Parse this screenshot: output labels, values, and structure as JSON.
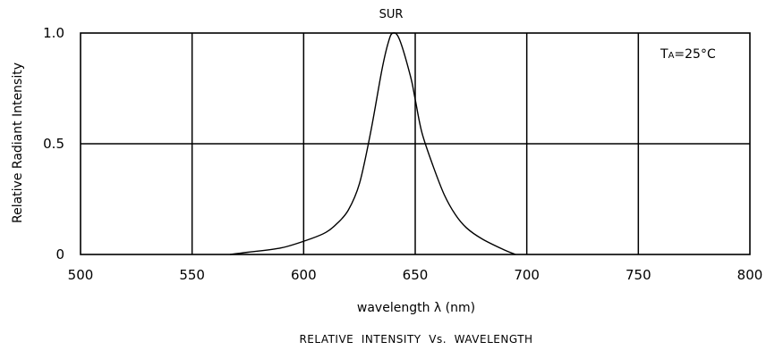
{
  "chart_data": {
    "type": "line",
    "title": "SUR",
    "annotation": "TA=25°C",
    "annotation_main": "T",
    "annotation_sub": "A",
    "annotation_rest": "=25°C",
    "xlabel": "wavelength λ (nm)",
    "ylabel": "Relative Radiant Intensity",
    "caption": "RELATIVE  INTENSITY  Vs.  WAVELENGTH",
    "xlim": [
      500,
      800
    ],
    "ylim": [
      0,
      1.0
    ],
    "x_ticks": [
      "500",
      "550",
      "600",
      "650",
      "700",
      "750",
      "800"
    ],
    "y_ticks": [
      "0",
      "0.5",
      "1.0"
    ],
    "x_tick_values": [
      500,
      550,
      600,
      650,
      700,
      750,
      800
    ],
    "y_tick_values": [
      0,
      0.5,
      1.0
    ],
    "grid": true,
    "series": [
      {
        "x": [
          567,
          575,
          590,
          603,
          610,
          615,
          620,
          625,
          630,
          635,
          638,
          640,
          643,
          648,
          650,
          653,
          658,
          663,
          668,
          673,
          680,
          690,
          695
        ],
        "y": [
          0.0,
          0.01,
          0.03,
          0.07,
          0.1,
          0.14,
          0.2,
          0.32,
          0.55,
          0.83,
          0.96,
          1.0,
          0.97,
          0.8,
          0.7,
          0.55,
          0.4,
          0.27,
          0.18,
          0.12,
          0.07,
          0.02,
          0.0
        ]
      }
    ]
  }
}
